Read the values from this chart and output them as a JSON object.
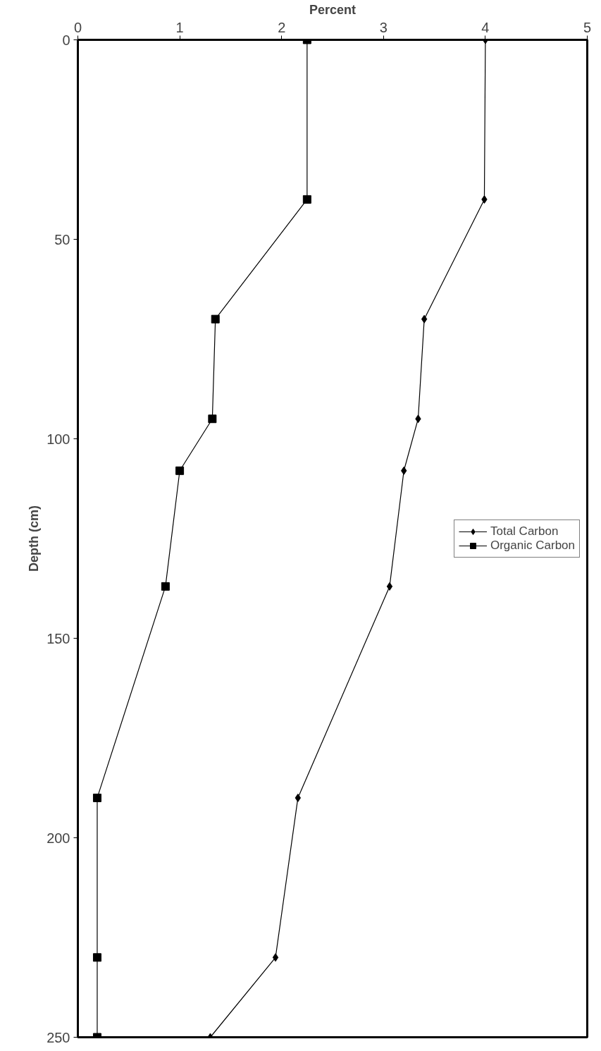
{
  "chart_data": {
    "type": "line",
    "xlabel": "Percent",
    "ylabel": "Depth (cm)",
    "xlim": [
      0,
      5
    ],
    "xticks": [
      0,
      1,
      2,
      3,
      4,
      5
    ],
    "ylim": [
      250,
      0
    ],
    "yticks": [
      0,
      50,
      100,
      150,
      200,
      250
    ],
    "grid": false,
    "legend": "right",
    "series": [
      {
        "name": "Total Carbon",
        "color": "#000000",
        "marker": "diamond",
        "x": [
          4.0,
          3.99,
          3.4,
          3.34,
          3.2,
          3.06,
          2.16,
          1.94,
          1.3
        ],
        "values": [
          0,
          40,
          70,
          95,
          108,
          137,
          190,
          230,
          250
        ]
      },
      {
        "name": "Organic Carbon",
        "color": "#000000",
        "marker": "square",
        "x": [
          2.25,
          2.25,
          1.35,
          1.32,
          1.0,
          0.86,
          0.19,
          0.19,
          0.19
        ],
        "values": [
          0,
          40,
          70,
          95,
          108,
          137,
          190,
          230,
          250
        ]
      }
    ]
  }
}
